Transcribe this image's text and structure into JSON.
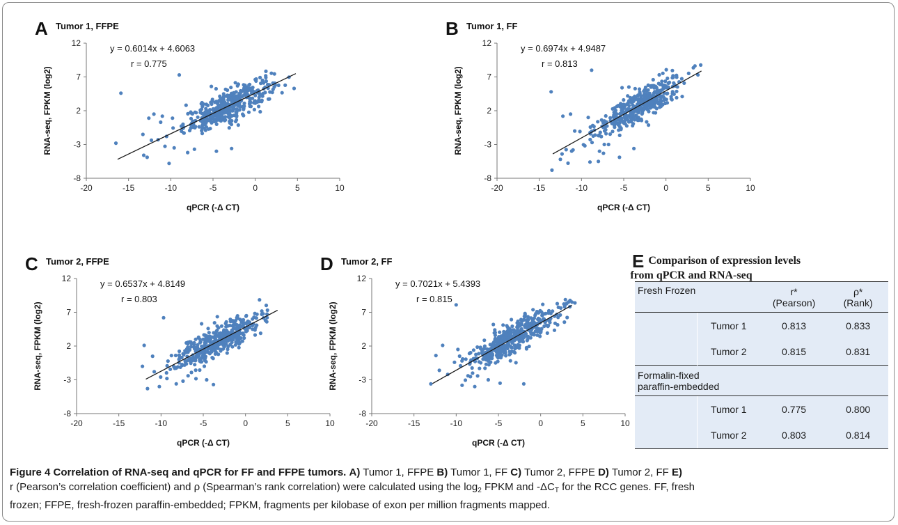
{
  "chart_data": [
    {
      "type": "scatter",
      "panel_label": "A",
      "title": "Tumor 1,  FFPE",
      "equation": "y = 0.6014x + 4.6063",
      "r_text": "r = 0.775",
      "slope": 0.6014,
      "intercept": 4.6063,
      "fit_range": [
        -16.3,
        4.8
      ],
      "xlim": [
        -20,
        10
      ],
      "ylim": [
        -8,
        12
      ],
      "xticks": [
        -20,
        -15,
        -10,
        -5,
        0,
        5,
        10
      ],
      "yticks": [
        -8,
        -3,
        2,
        7,
        12
      ],
      "xlabel": "qPCR (-Δ CT)",
      "ylabel": "RNA-seq, FPKM  (log2)",
      "n_points": 420,
      "outliers": [
        [
          -16.5,
          -2.8
        ],
        [
          -15.9,
          4.6
        ],
        [
          -13.2,
          -4.6
        ],
        [
          -12.8,
          -4.9
        ],
        [
          -10.2,
          -5.8
        ],
        [
          -9.0,
          7.3
        ],
        [
          -11.5,
          -2.3
        ],
        [
          -12.0,
          1.5
        ],
        [
          -11.0,
          1.2
        ],
        [
          -10.5,
          -1.8
        ],
        [
          -9.6,
          -3.5
        ],
        [
          -8.0,
          -4.2
        ],
        [
          -7.2,
          -3.7
        ],
        [
          -5.2,
          5.6
        ],
        [
          -4.6,
          -4.0
        ],
        [
          -2.8,
          -3.6
        ],
        [
          -12.6,
          0.9
        ],
        [
          -11.2,
          0.3
        ],
        [
          -13.3,
          -1.5
        ],
        [
          -9.8,
          0.9
        ]
      ],
      "point_color": "#4f81bd"
    },
    {
      "type": "scatter",
      "panel_label": "B",
      "title": "Tumor 1, FF",
      "equation": "y = 0.6974x + 4.9487",
      "r_text": "r = 0.813",
      "slope": 0.6974,
      "intercept": 4.9487,
      "fit_range": [
        -13.4,
        4.2
      ],
      "xlim": [
        -20,
        10
      ],
      "ylim": [
        -8,
        12
      ],
      "xticks": [
        -20,
        -15,
        -10,
        -5,
        0,
        5,
        10
      ],
      "yticks": [
        -8,
        -3,
        2,
        7,
        12
      ],
      "xlabel": "qPCR (-Δ CT)",
      "ylabel": "RNA-seq, FPKM  (log2)",
      "n_points": 420,
      "outliers": [
        [
          -13.6,
          4.8
        ],
        [
          -13.5,
          -6.8
        ],
        [
          -12.5,
          -5.2
        ],
        [
          -12.2,
          1.2
        ],
        [
          -11.3,
          1.5
        ],
        [
          -8.8,
          8.0
        ],
        [
          -9.0,
          -5.6
        ],
        [
          -8.0,
          -5.5
        ],
        [
          -5.5,
          -4.9
        ],
        [
          -5.2,
          5.4
        ],
        [
          -12.3,
          -4.4
        ],
        [
          -10.8,
          -1.0
        ],
        [
          -9.6,
          -3.2
        ],
        [
          -7.4,
          -4.3
        ],
        [
          -3.8,
          -3.6
        ],
        [
          -11.0,
          -3.8
        ],
        [
          -9.2,
          1.0
        ],
        [
          -6.8,
          -3.0
        ]
      ],
      "point_color": "#4f81bd"
    },
    {
      "type": "scatter",
      "panel_label": "C",
      "title": "Tumor 2, FFPE",
      "equation": "y = 0.6537x + 4.8149",
      "r_text": "r = 0.803",
      "slope": 0.6537,
      "intercept": 4.8149,
      "fit_range": [
        -11.8,
        3.8
      ],
      "xlim": [
        -20,
        10
      ],
      "ylim": [
        -8,
        12
      ],
      "xticks": [
        -20,
        -15,
        -10,
        -5,
        0,
        5,
        10
      ],
      "yticks": [
        -8,
        -3,
        2,
        7,
        12
      ],
      "xlabel": "qPCR (-Δ CT)",
      "ylabel": "RNA-seq, FPKM  (log2)",
      "n_points": 420,
      "outliers": [
        [
          -12.0,
          2.1
        ],
        [
          -11.6,
          -4.3
        ],
        [
          -10.2,
          -4.0
        ],
        [
          -9.7,
          6.2
        ],
        [
          -8.2,
          -3.6
        ],
        [
          -5.2,
          5.3
        ],
        [
          -3.8,
          -3.7
        ],
        [
          -11.0,
          0.5
        ],
        [
          -10.8,
          -1.8
        ],
        [
          -9.3,
          -2.8
        ],
        [
          -7.4,
          -3.2
        ],
        [
          -12.2,
          -1.0
        ],
        [
          -6.8,
          -2.4
        ],
        [
          -4.6,
          -3.0
        ]
      ],
      "point_color": "#4f81bd"
    },
    {
      "type": "scatter",
      "panel_label": "D",
      "title": "Tumor 2, FF",
      "equation": "y = 0.7021x + 5.4393",
      "r_text": "r = 0.815",
      "slope": 0.7021,
      "intercept": 5.4393,
      "fit_range": [
        -12.8,
        3.7
      ],
      "xlim": [
        -20,
        10
      ],
      "ylim": [
        -8,
        12
      ],
      "xticks": [
        -20,
        -15,
        -10,
        -5,
        0,
        5,
        10
      ],
      "yticks": [
        -8,
        -3,
        2,
        7,
        12
      ],
      "xlabel": "qPCR (-Δ CT)",
      "ylabel": "RNA-seq, FPKM  (log2)",
      "n_points": 460,
      "outliers": [
        [
          -13.0,
          -3.6
        ],
        [
          -12.4,
          0.6
        ],
        [
          -11.6,
          2.1
        ],
        [
          -10.0,
          8.1
        ],
        [
          -9.3,
          -3.8
        ],
        [
          -7.8,
          -4.0
        ],
        [
          -6.2,
          -3.0
        ],
        [
          -4.8,
          -3.5
        ],
        [
          -2.0,
          -3.6
        ],
        [
          -5.6,
          5.2
        ],
        [
          -11.0,
          -2.2
        ],
        [
          -10.2,
          -0.4
        ],
        [
          -8.6,
          -2.4
        ],
        [
          -12.0,
          -1.6
        ],
        [
          -9.8,
          1.5
        ]
      ],
      "point_color": "#4f81bd"
    }
  ],
  "panel_e": {
    "letter": "E",
    "title_line1": "Comparison of expression levels",
    "title_line2": "from qPCR and RNA-seq",
    "header": {
      "group": "Fresh Frozen",
      "col1": "r*",
      "col1_sub": "(Pearson)",
      "col2": "ρ*",
      "col2_sub": "(Rank)"
    },
    "groups": [
      {
        "name": "Fresh Frozen",
        "rows": [
          {
            "label": "Tumor 1",
            "r": "0.813",
            "rho": "0.833"
          },
          {
            "label": "Tumor 2",
            "r": "0.815",
            "rho": "0.831"
          }
        ]
      },
      {
        "name_line1": "Formalin-fixed",
        "name_line2": "paraffin-embedded",
        "rows": [
          {
            "label": "Tumor 1",
            "r": "0.775",
            "rho": "0.800"
          },
          {
            "label": "Tumor 2",
            "r": "0.803",
            "rho": "0.814"
          }
        ]
      }
    ]
  },
  "caption": {
    "fig": "Figure 4 Correlation of RNA-seq and qPCR for FF and FFPE tumors.",
    "A_key": "A)",
    "A_text": " Tumor 1, FFPE ",
    "B_key": "B)",
    "B_text": " Tumor 1, FF ",
    "C_key": "C)",
    "C_text": " Tumor 2, FFPE ",
    "D_key": "D)",
    "D_text": " Tumor 2, FF ",
    "E_key": "E)",
    "line2a": "r (Pearson’s correlation coefficient) and ρ (Spearman’s rank correlation) were calculated using the log",
    "line2b": " FPKM and -ΔC",
    "line2c": " for the RCC genes. FF, fresh",
    "line3": "frozen; FFPE, fresh-frozen paraffin-embedded; FPKM, fragments per kilobase of exon per million fragments mapped."
  }
}
